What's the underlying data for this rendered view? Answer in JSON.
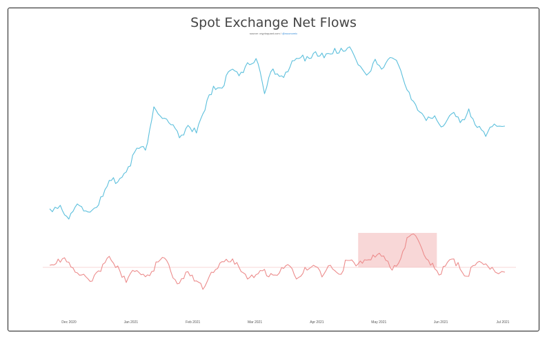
{
  "chart_data": {
    "type": "line",
    "title": "Spot Exchange Net Flows",
    "subtitle": {
      "source": "source: cryptoquant.com",
      "link_text": "@woonomic"
    },
    "x_ticks": [
      "Dec 2020",
      "Jan 2021",
      "Feb 2021",
      "Mar 2021",
      "Apr 2021",
      "May 2021",
      "Jun 2021",
      "Jul 2021"
    ],
    "x_range": [
      "2020-12-03",
      "2021-07-05"
    ],
    "grid": false,
    "legend": "none",
    "highlight_region": {
      "x": [
        "2021-04-27",
        "2021-06-03"
      ],
      "color": "#f8d7d7"
    },
    "series": [
      {
        "panel": "top",
        "color": "#5bbfdc",
        "x": [
          "2020-12-03",
          "2020-12-08",
          "2020-12-12",
          "2020-12-16",
          "2020-12-20",
          "2020-12-24",
          "2020-12-28",
          "2021-01-01",
          "2021-01-05",
          "2021-01-09",
          "2021-01-13",
          "2021-01-17",
          "2021-01-21",
          "2021-01-25",
          "2021-01-29",
          "2021-02-02",
          "2021-02-06",
          "2021-02-10",
          "2021-02-14",
          "2021-02-18",
          "2021-02-22",
          "2021-02-26",
          "2021-03-02",
          "2021-03-06",
          "2021-03-10",
          "2021-03-14",
          "2021-03-18",
          "2021-03-22",
          "2021-03-26",
          "2021-03-30",
          "2021-04-03",
          "2021-04-07",
          "2021-04-11",
          "2021-04-15",
          "2021-04-19",
          "2021-04-23",
          "2021-04-27",
          "2021-05-01",
          "2021-05-05",
          "2021-05-09",
          "2021-05-13",
          "2021-05-17",
          "2021-05-21",
          "2021-05-25",
          "2021-05-29",
          "2021-06-02",
          "2021-06-06",
          "2021-06-10",
          "2021-06-14",
          "2021-06-18",
          "2021-06-22",
          "2021-06-26",
          "2021-06-30",
          "2021-07-05"
        ],
        "values": [
          303,
          298,
          318,
          296,
          306,
          302,
          285,
          262,
          259,
          242,
          215,
          218,
          155,
          172,
          181,
          200,
          182,
          193,
          160,
          125,
          128,
          102,
          110,
          91,
          85,
          136,
          100,
          110,
          97,
          85,
          82,
          75,
          84,
          78,
          70,
          68,
          94,
          109,
          86,
          98,
          84,
          102,
          134,
          160,
          175,
          168,
          183,
          165,
          178,
          158,
          185,
          198,
          180,
          183
        ]
      },
      {
        "panel": "bottom",
        "color": "#ec8b8b",
        "x": [
          "2020-12-03",
          "2020-12-07",
          "2020-12-11",
          "2020-12-15",
          "2020-12-19",
          "2020-12-23",
          "2020-12-27",
          "2020-12-31",
          "2021-01-04",
          "2021-01-08",
          "2021-01-12",
          "2021-01-16",
          "2021-01-20",
          "2021-01-24",
          "2021-01-28",
          "2021-02-01",
          "2021-02-05",
          "2021-02-09",
          "2021-02-13",
          "2021-02-17",
          "2021-02-21",
          "2021-02-25",
          "2021-03-01",
          "2021-03-05",
          "2021-03-09",
          "2021-03-13",
          "2021-03-17",
          "2021-03-21",
          "2021-03-25",
          "2021-03-29",
          "2021-04-02",
          "2021-04-06",
          "2021-04-10",
          "2021-04-14",
          "2021-04-18",
          "2021-04-22",
          "2021-04-26",
          "2021-04-30",
          "2021-05-04",
          "2021-05-08",
          "2021-05-12",
          "2021-05-16",
          "2021-05-20",
          "2021-05-24",
          "2021-05-28",
          "2021-06-01",
          "2021-06-05",
          "2021-06-09",
          "2021-06-13",
          "2021-06-17",
          "2021-06-21",
          "2021-06-25",
          "2021-06-29",
          "2021-07-05"
        ],
        "values": [
          385,
          376,
          380,
          395,
          398,
          408,
          394,
          372,
          386,
          410,
          394,
          398,
          394,
          377,
          384,
          412,
          395,
          408,
          420,
          395,
          382,
          380,
          381,
          398,
          403,
          393,
          397,
          396,
          384,
          405,
          388,
          385,
          402,
          385,
          398,
          378,
          386,
          377,
          370,
          372,
          388,
          382,
          345,
          342,
          370,
          382,
          398,
          377,
          381,
          401,
          385,
          384,
          388,
          395
        ]
      }
    ]
  }
}
